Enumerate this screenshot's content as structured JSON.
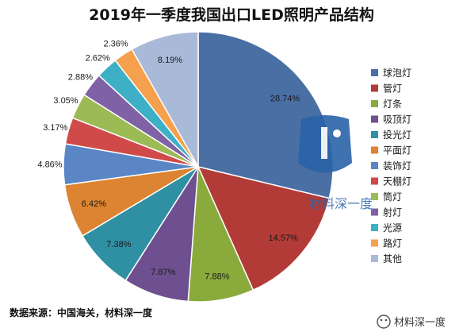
{
  "chart_data": {
    "type": "pie",
    "title": "2019年一季度我国出口LED照明产品结构",
    "slices": [
      {
        "label": "球泡灯",
        "value": 28.74,
        "display": "28.74%",
        "color": "#4a6fa5"
      },
      {
        "label": "管灯",
        "value": 14.57,
        "display": "14.57%",
        "color": "#b23b37"
      },
      {
        "label": "灯条",
        "value": 7.88,
        "display": "7.88%",
        "color": "#8aaa3c"
      },
      {
        "label": "吸顶灯",
        "value": 7.87,
        "display": "7.87%",
        "color": "#6e4f8f"
      },
      {
        "label": "投光灯",
        "value": 7.38,
        "display": "7.38%",
        "color": "#2f8fa3"
      },
      {
        "label": "平面灯",
        "value": 6.42,
        "display": "6.42%",
        "color": "#dc8431"
      },
      {
        "label": "装饰灯",
        "value": 4.86,
        "display": "4.86%",
        "color": "#5a86c6"
      },
      {
        "label": "天棚灯",
        "value": 3.17,
        "display": "3.17%",
        "color": "#cf4a48"
      },
      {
        "label": "筒灯",
        "value": 3.05,
        "display": "3.05%",
        "color": "#9dbb55"
      },
      {
        "label": "射灯",
        "value": 2.88,
        "display": "2.88%",
        "color": "#7f62a5"
      },
      {
        "label": "光源",
        "value": 2.62,
        "display": "2.62%",
        "color": "#3db0c6"
      },
      {
        "label": "路灯",
        "value": 2.36,
        "display": "2.36%",
        "color": "#f4a04c"
      },
      {
        "label": "其他",
        "value": 8.19,
        "display": "8.19%",
        "color": "#a9b9d8"
      }
    ],
    "legend_position": "right"
  },
  "footer": {
    "source": "数据来源：中国海关，材料深一度"
  },
  "watermark": {
    "center_text": "材料深一度",
    "account_text": "材料深一度"
  }
}
